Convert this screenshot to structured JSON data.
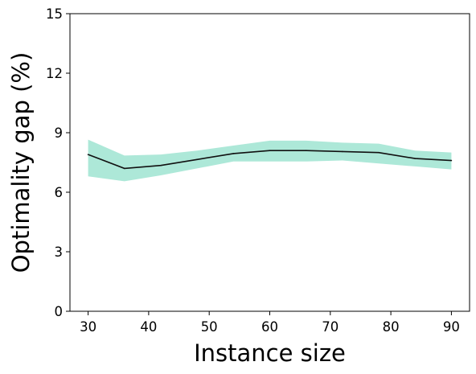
{
  "chart_data": {
    "type": "line",
    "xlabel": "Instance size",
    "ylabel": "Optimality gap (%)",
    "xlim": [
      27,
      93
    ],
    "ylim": [
      0,
      15
    ],
    "xticks": [
      30,
      40,
      50,
      60,
      70,
      80,
      90
    ],
    "yticks": [
      0,
      3,
      6,
      9,
      12,
      15
    ],
    "grid": false,
    "series": [
      {
        "x": [
          30,
          36,
          42,
          48,
          54,
          60,
          66,
          72,
          78,
          84,
          90
        ],
        "values": [
          7.9,
          7.2,
          7.35,
          7.65,
          7.95,
          8.1,
          8.1,
          8.05,
          8.0,
          7.7,
          7.6
        ],
        "lower": [
          6.8,
          6.55,
          6.85,
          7.2,
          7.55,
          7.55,
          7.55,
          7.6,
          7.45,
          7.3,
          7.15
        ],
        "upper": [
          8.65,
          7.85,
          7.9,
          8.1,
          8.35,
          8.6,
          8.6,
          8.5,
          8.45,
          8.1,
          8.0
        ],
        "line_color": "#111111",
        "band_color": "#ade8d8"
      }
    ]
  }
}
